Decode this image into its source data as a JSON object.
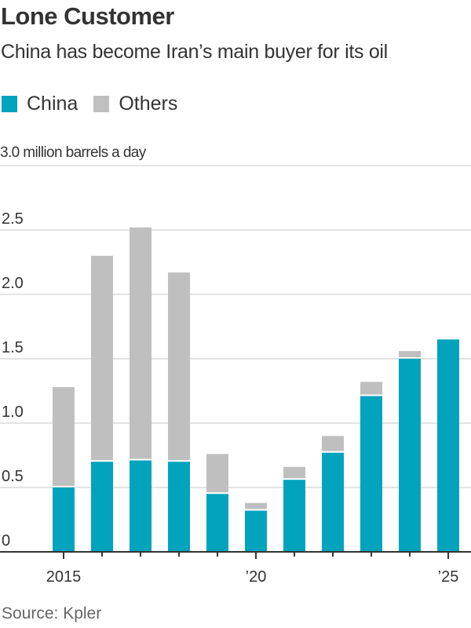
{
  "header": {
    "title": "Lone Customer",
    "subtitle": "China has become Iran’s main buyer for its oil"
  },
  "legend": [
    {
      "label": "China",
      "color": "#02a3bd"
    },
    {
      "label": "Others",
      "color": "#bfbfbf"
    }
  ],
  "axis": {
    "unit_label": "3.0 million barrels a day",
    "y_ticks": [
      "3.0",
      "2.5",
      "2.0",
      "1.5",
      "1.0",
      "0.5",
      "0"
    ],
    "x_labels": [
      {
        "index": 0,
        "label": "2015"
      },
      {
        "index": 5,
        "label": "’20"
      },
      {
        "index": 10,
        "label": "’25"
      }
    ]
  },
  "footer": {
    "source": "Source: Kpler"
  },
  "chart_data": {
    "type": "bar",
    "stacked": true,
    "title": "Lone Customer",
    "subtitle": "China has become Iran’s main buyer for its oil",
    "xlabel": "",
    "ylabel": "million barrels a day",
    "ylim": [
      0,
      3.0
    ],
    "y_ticks": [
      0,
      0.5,
      1.0,
      1.5,
      2.0,
      2.5,
      3.0
    ],
    "grid": true,
    "legend_position": "top-left",
    "categories": [
      "2015",
      "2016",
      "2017",
      "2018",
      "2019",
      "2020",
      "2021",
      "2022",
      "2023",
      "2024",
      "2025"
    ],
    "series": [
      {
        "name": "China",
        "color": "#02a3bd",
        "values": [
          0.5,
          0.7,
          0.71,
          0.7,
          0.45,
          0.32,
          0.56,
          0.77,
          1.21,
          1.5,
          1.65
        ]
      },
      {
        "name": "Others",
        "color": "#bfbfbf",
        "values": [
          0.78,
          1.6,
          1.81,
          1.47,
          0.31,
          0.06,
          0.1,
          0.13,
          0.11,
          0.06,
          0.0
        ]
      }
    ],
    "source": "Source: Kpler"
  }
}
